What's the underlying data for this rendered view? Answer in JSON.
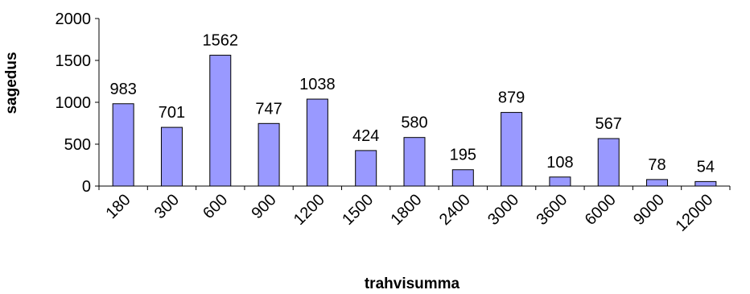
{
  "chart_data": {
    "type": "bar",
    "categories": [
      "180",
      "300",
      "600",
      "900",
      "1200",
      "1500",
      "1800",
      "2400",
      "3000",
      "3600",
      "6000",
      "9000",
      "12000"
    ],
    "values": [
      983,
      701,
      1562,
      747,
      1038,
      424,
      580,
      195,
      879,
      108,
      567,
      78,
      54
    ],
    "data_labels": [
      "983",
      "701",
      "1562",
      "747",
      "1038",
      "424",
      "580",
      "195",
      "879",
      "108",
      "567",
      "78",
      "54"
    ],
    "title": "",
    "xlabel": "trahvisumma",
    "ylabel": "sagedus",
    "ylim": [
      0,
      2000
    ],
    "yticks": [
      0,
      500,
      1000,
      1500,
      2000
    ],
    "ytick_labels": [
      "0",
      "500",
      "1000",
      "1500",
      "2000"
    ],
    "bar_color": "#9999ff",
    "bar_edge_color": "#000000",
    "grid": false,
    "legend": "none"
  }
}
